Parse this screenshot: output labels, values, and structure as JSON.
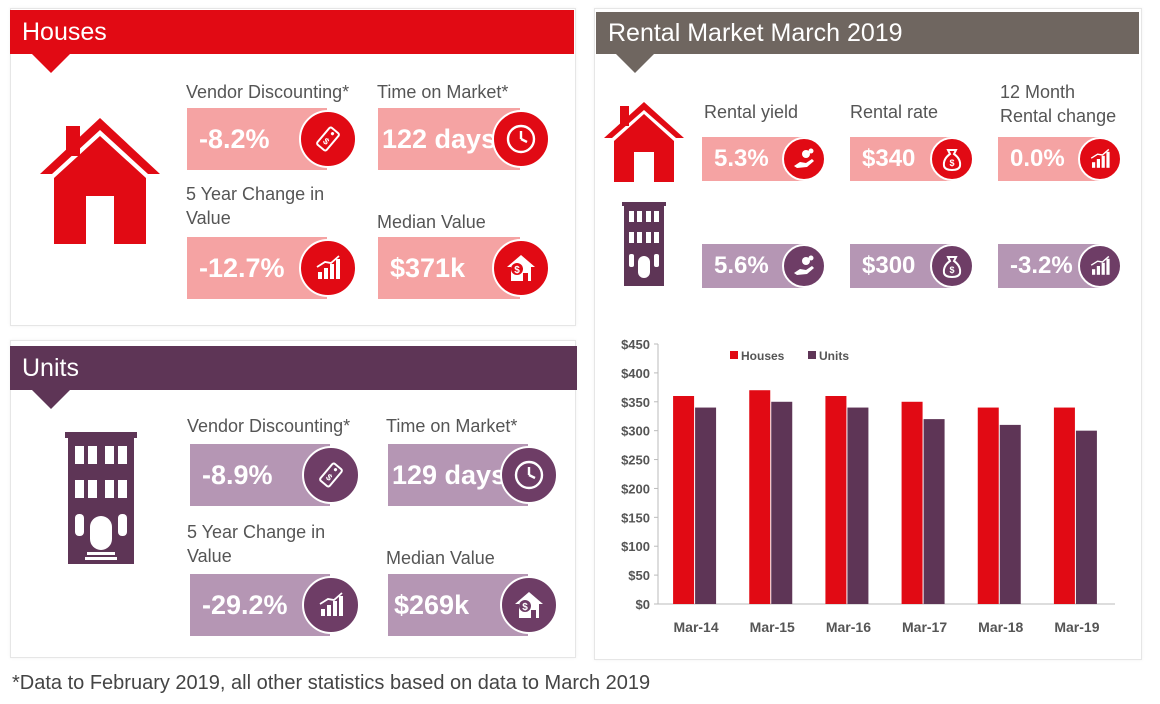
{
  "colors": {
    "houses": "#e10a14",
    "houses_light": "#f5a3a3",
    "units": "#5e3556",
    "units_light": "#b596b4",
    "rental": "#6f6660"
  },
  "houses": {
    "title": "Houses",
    "vendor_label": "Vendor Discounting*",
    "vendor_value": "-8.2%",
    "vendor_icon": "price-tag-icon",
    "time_label": "Time on Market*",
    "time_value": "122 days",
    "time_icon": "clock-icon",
    "change_label_line1": "5 Year Change in",
    "change_label_line2": "Value",
    "change_value": "-12.7%",
    "change_icon": "growth-chart-icon",
    "median_label": "Median Value",
    "median_value": "$371k",
    "median_icon": "house-dollar-icon"
  },
  "units": {
    "title": "Units",
    "vendor_label": "Vendor Discounting*",
    "vendor_value": "-8.9%",
    "time_label": "Time on Market*",
    "time_value": "129 days",
    "change_label_line1": "5 Year Change in",
    "change_label_line2": "Value",
    "change_value": "-29.2%",
    "median_label": "Median Value",
    "median_value": "$269k"
  },
  "rental": {
    "title": "Rental Market March 2019",
    "yield_label": "Rental yield",
    "rate_label": "Rental rate",
    "change_label_line1": "12 Month",
    "change_label_line2": "Rental change",
    "houses_yield": "5.3%",
    "houses_rate": "$340",
    "houses_change": "0.0%",
    "units_yield": "5.6%",
    "units_rate": "$300",
    "units_change": "-3.2%"
  },
  "chart_data": {
    "type": "bar",
    "categories": [
      "Mar-14",
      "Mar-15",
      "Mar-16",
      "Mar-17",
      "Mar-18",
      "Mar-19"
    ],
    "series": [
      {
        "name": "Houses",
        "values": [
          360,
          370,
          360,
          350,
          340,
          340
        ],
        "color": "#e10a14"
      },
      {
        "name": "Units",
        "values": [
          340,
          350,
          340,
          320,
          310,
          300
        ],
        "color": "#5e3556"
      }
    ],
    "ylim": [
      0,
      450
    ],
    "yticks": [
      0,
      50,
      100,
      150,
      200,
      250,
      300,
      350,
      400,
      450
    ],
    "ytick_labels": [
      "$0",
      "$50",
      "$100",
      "$150",
      "$200",
      "$250",
      "$300",
      "$350",
      "$400",
      "$450"
    ],
    "legend_position": "top",
    "grid": false
  },
  "footnote": "*Data to February 2019, all other statistics based on data to March 2019"
}
